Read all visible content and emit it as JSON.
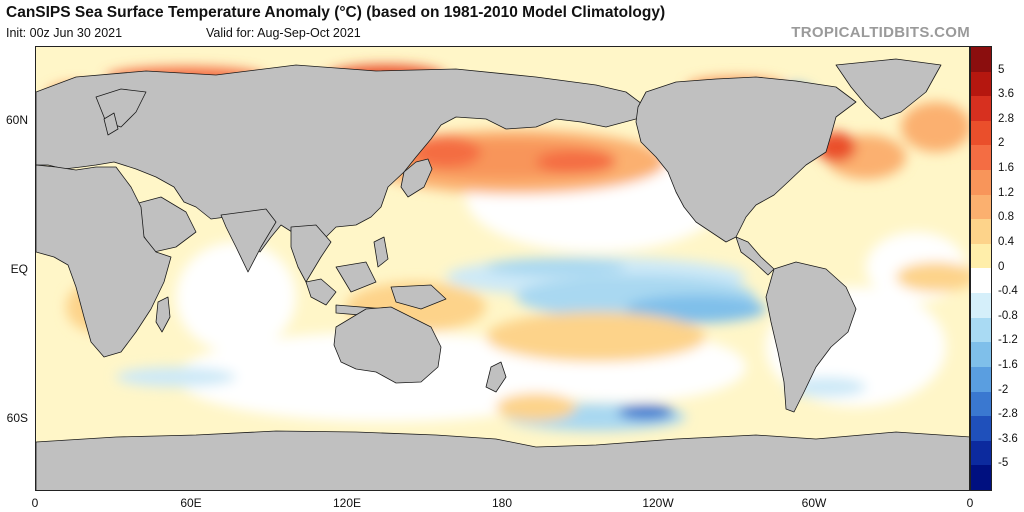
{
  "header": {
    "title": "CanSIPS Sea Surface Temperature Anomaly (°C) (based on 1981-2010 Model Climatology)",
    "init": "Init: 00z Jun 30 2021",
    "valid": "Valid for: Aug-Sep-Oct 2021",
    "source": "TROPICALTIDBITS.COM"
  },
  "map": {
    "projection": "equirectangular, 0 to 360 longitude",
    "land_color": "#c0c0c0",
    "y_ticks": [
      "60N",
      "EQ",
      "60S"
    ],
    "x_ticks": [
      "0",
      "60E",
      "120E",
      "180",
      "120W",
      "60W",
      "0"
    ]
  },
  "colorbar": {
    "labels": [
      "5",
      "3.6",
      "2.8",
      "2",
      "1.6",
      "1.2",
      "0.8",
      "0.4",
      "0",
      "-0.4",
      "-0.8",
      "-1.2",
      "-1.6",
      "-2",
      "-2.8",
      "-3.6",
      "-5"
    ],
    "colors": [
      "#8b0e0e",
      "#b5170f",
      "#d7301f",
      "#ea4f2b",
      "#f46d43",
      "#f8955a",
      "#fbb06f",
      "#fdd38a",
      "#ffeeaa",
      "#ffffff",
      "#d5effa",
      "#a9daf3",
      "#7fbfea",
      "#5a9ee0",
      "#3a78d0",
      "#1f50bb",
      "#0c2a9e",
      "#001080"
    ]
  }
}
